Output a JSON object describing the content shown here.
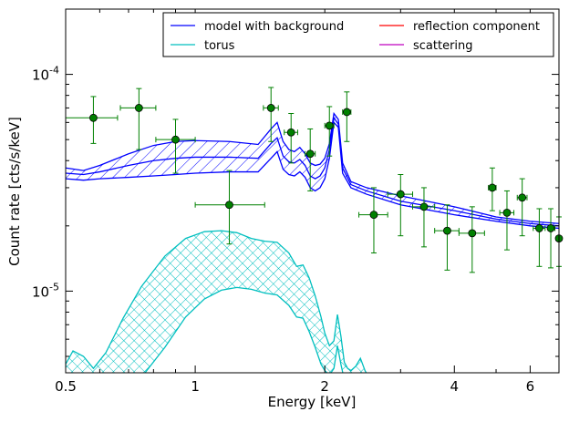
{
  "chart_data": {
    "type": "line",
    "title": "",
    "xlabel": "Energy [keV]",
    "ylabel": "Count rate [cts/s/keV]",
    "xscale": "log",
    "yscale": "log",
    "xlim": [
      0.5,
      7.0
    ],
    "ylim": [
      4.2e-06,
      0.0002
    ],
    "x_ticks": [
      {
        "value": 0.5,
        "label": "0.5"
      },
      {
        "value": 1,
        "label": "1"
      },
      {
        "value": 2,
        "label": "2"
      },
      {
        "value": 4,
        "label": "4"
      },
      {
        "value": 6,
        "label": "6"
      }
    ],
    "y_ticks": [
      {
        "value": 1e-05,
        "base": "10",
        "exp": "-5"
      },
      {
        "value": 0.0001,
        "base": "10",
        "exp": "-4"
      }
    ],
    "legend": {
      "placement": "top-right",
      "columns": 2,
      "entries": [
        {
          "label": "model with background",
          "color": "#0000ff"
        },
        {
          "label": "reflection component",
          "color": "#ff0000"
        },
        {
          "label": "torus",
          "color": "#00bfbf"
        },
        {
          "label": "scattering",
          "color": "#bf00bf"
        }
      ]
    },
    "series": [
      {
        "name": "model with background",
        "color": "#0000ff",
        "hatch": "diagonal",
        "x": [
          0.5,
          0.55,
          0.6,
          0.7,
          0.8,
          0.9,
          1.0,
          1.2,
          1.4,
          1.5,
          1.55,
          1.6,
          1.65,
          1.7,
          1.75,
          1.8,
          1.85,
          1.9,
          1.95,
          2.0,
          2.05,
          2.1,
          2.15,
          2.2,
          2.3,
          2.5,
          3.0,
          4.0,
          5.0,
          6.0,
          7.0
        ],
        "upper": [
          3.7e-05,
          3.6e-05,
          3.8e-05,
          4.3e-05,
          4.7e-05,
          4.9e-05,
          4.95e-05,
          4.9e-05,
          4.75e-05,
          5.6e-05,
          6e-05,
          4.9e-05,
          4.5e-05,
          4.4e-05,
          4.6e-05,
          4.3e-05,
          3.9e-05,
          3.8e-05,
          3.85e-05,
          4.1e-05,
          4.8e-05,
          6.6e-05,
          6.2e-05,
          3.9e-05,
          3.2e-05,
          3e-05,
          2.75e-05,
          2.45e-05,
          2.2e-05,
          2.1e-05,
          2.05e-05
        ],
        "lower": [
          3.3e-05,
          3.25e-05,
          3.3e-05,
          3.35e-05,
          3.4e-05,
          3.45e-05,
          3.5e-05,
          3.55e-05,
          3.55e-05,
          4.1e-05,
          4.4e-05,
          3.65e-05,
          3.45e-05,
          3.4e-05,
          3.55e-05,
          3.35e-05,
          3e-05,
          2.9e-05,
          3e-05,
          3.3e-05,
          4.1e-05,
          6e-05,
          5.7e-05,
          3.5e-05,
          3e-05,
          2.8e-05,
          2.5e-05,
          2.25e-05,
          2.1e-05,
          2e-05,
          1.95e-05
        ],
        "model": [
          3.5e-05,
          3.45e-05,
          3.55e-05,
          3.8e-05,
          4e-05,
          4.1e-05,
          4.15e-05,
          4.15e-05,
          4.1e-05,
          4.8e-05,
          5.1e-05,
          4.2e-05,
          3.95e-05,
          3.9e-05,
          4.05e-05,
          3.8e-05,
          3.4e-05,
          3.3e-05,
          3.4e-05,
          3.7e-05,
          4.5e-05,
          6.3e-05,
          5.9e-05,
          3.7e-05,
          3.1e-05,
          2.9e-05,
          2.6e-05,
          2.35e-05,
          2.15e-05,
          2.05e-05,
          2e-05
        ]
      },
      {
        "name": "torus",
        "color": "#00bfbf",
        "hatch": "cross",
        "x": [
          0.5,
          0.52,
          0.55,
          0.58,
          0.62,
          0.68,
          0.75,
          0.85,
          0.95,
          1.05,
          1.15,
          1.25,
          1.35,
          1.45,
          1.55,
          1.65,
          1.72,
          1.78,
          1.84,
          1.9,
          1.96,
          2.0,
          2.05,
          2.1,
          2.14,
          2.18,
          2.22,
          2.26,
          2.3,
          2.36,
          2.42,
          2.48,
          2.55
        ],
        "upper": [
          4.6e-06,
          5.3e-06,
          5e-06,
          4.4e-06,
          5.2e-06,
          7.5e-06,
          1.05e-05,
          1.45e-05,
          1.75e-05,
          1.88e-05,
          1.9e-05,
          1.86e-05,
          1.75e-05,
          1.7e-05,
          1.68e-05,
          1.5e-05,
          1.3e-05,
          1.32e-05,
          1.15e-05,
          9.5e-06,
          7.6e-06,
          6.4e-06,
          5.6e-06,
          5.9e-06,
          7.8e-06,
          6.2e-06,
          4.7e-06,
          4.4e-06,
          4.3e-06,
          4.5e-06,
          4.9e-06,
          4.3e-06,
          3.9e-06
        ],
        "lower": [
          3.9e-06,
          3.9e-06,
          3.9e-06,
          3.9e-06,
          3.9e-06,
          3.9e-06,
          4e-06,
          5.5e-06,
          7.6e-06,
          9.2e-06,
          1.01e-05,
          1.04e-05,
          1.02e-05,
          9.8e-06,
          9.6e-06,
          8.6e-06,
          7.6e-06,
          7.5e-06,
          6.5e-06,
          5.5e-06,
          4.6e-06,
          4.3e-06,
          4.1e-06,
          4.4e-06,
          5.6e-06,
          4.6e-06,
          3.9e-06,
          3.9e-06,
          3.9e-06,
          3.9e-06,
          3.9e-06,
          3.9e-06,
          3.9e-06
        ]
      },
      {
        "name": "data",
        "color": "#008000",
        "points": [
          {
            "x": 0.58,
            "y": 6.3e-05,
            "xlo": 0.5,
            "xhi": 0.66,
            "ylo": 4.8e-05,
            "yhi": 7.9e-05
          },
          {
            "x": 0.74,
            "y": 7e-05,
            "xlo": 0.67,
            "xhi": 0.81,
            "ylo": 4.5e-05,
            "yhi": 8.6e-05
          },
          {
            "x": 0.9,
            "y": 5e-05,
            "xlo": 0.81,
            "xhi": 1.0,
            "ylo": 3.5e-05,
            "yhi": 6.2e-05
          },
          {
            "x": 1.2,
            "y": 2.5e-05,
            "xlo": 1.0,
            "xhi": 1.45,
            "ylo": 1.65e-05,
            "yhi": 3.6e-05
          },
          {
            "x": 1.5,
            "y": 7e-05,
            "xlo": 1.44,
            "xhi": 1.56,
            "ylo": 4.9e-05,
            "yhi": 8.7e-05
          },
          {
            "x": 1.67,
            "y": 5.4e-05,
            "xlo": 1.61,
            "xhi": 1.73,
            "ylo": 3.9e-05,
            "yhi": 6.6e-05
          },
          {
            "x": 1.85,
            "y": 4.3e-05,
            "xlo": 1.8,
            "xhi": 1.9,
            "ylo": 2.9e-05,
            "yhi": 5.6e-05
          },
          {
            "x": 2.05,
            "y": 5.8e-05,
            "xlo": 2.0,
            "xhi": 2.1,
            "ylo": 4.2e-05,
            "yhi": 7.1e-05
          },
          {
            "x": 2.25,
            "y": 6.7e-05,
            "xlo": 2.2,
            "xhi": 2.3,
            "ylo": 4.9e-05,
            "yhi": 8.3e-05
          },
          {
            "x": 2.6,
            "y": 2.25e-05,
            "xlo": 2.4,
            "xhi": 2.8,
            "ylo": 1.5e-05,
            "yhi": 3e-05
          },
          {
            "x": 3.0,
            "y": 2.8e-05,
            "xlo": 2.8,
            "xhi": 3.2,
            "ylo": 1.8e-05,
            "yhi": 3.45e-05
          },
          {
            "x": 3.4,
            "y": 2.45e-05,
            "xlo": 3.2,
            "xhi": 3.6,
            "ylo": 1.6e-05,
            "yhi": 3e-05
          },
          {
            "x": 3.85,
            "y": 1.9e-05,
            "xlo": 3.6,
            "xhi": 4.1,
            "ylo": 1.25e-05,
            "yhi": 2.5e-05
          },
          {
            "x": 4.4,
            "y": 1.85e-05,
            "xlo": 4.1,
            "xhi": 4.7,
            "ylo": 1.22e-05,
            "yhi": 2.45e-05
          },
          {
            "x": 4.9,
            "y": 3e-05,
            "xlo": 4.8,
            "xhi": 5.0,
            "ylo": 2.35e-05,
            "yhi": 3.7e-05
          },
          {
            "x": 5.3,
            "y": 2.3e-05,
            "xlo": 5.1,
            "xhi": 5.5,
            "ylo": 1.55e-05,
            "yhi": 2.9e-05
          },
          {
            "x": 5.75,
            "y": 2.7e-05,
            "xlo": 5.6,
            "xhi": 5.9,
            "ylo": 1.8e-05,
            "yhi": 3.3e-05
          },
          {
            "x": 6.3,
            "y": 1.95e-05,
            "xlo": 6.1,
            "xhi": 6.5,
            "ylo": 1.3e-05,
            "yhi": 2.4e-05
          },
          {
            "x": 6.7,
            "y": 1.95e-05,
            "xlo": 6.6,
            "xhi": 6.85,
            "ylo": 1.28e-05,
            "yhi": 2.4e-05
          },
          {
            "x": 7.0,
            "y": 1.75e-05,
            "xlo": 6.9,
            "xhi": 7.0,
            "ylo": 1.3e-05,
            "yhi": 2.2e-05
          }
        ]
      }
    ]
  }
}
